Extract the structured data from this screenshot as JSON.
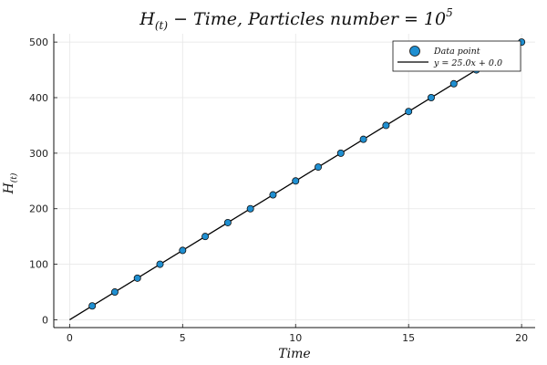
{
  "chart_data": {
    "type": "scatter",
    "title": "H(t) − Time, Particles number = 10^5",
    "title_parts": {
      "H": "H",
      "sub": "(t)",
      "rest": " − Time, Particles number = 10",
      "sup": "5"
    },
    "xlabel": "Time",
    "ylabel": "H(t)",
    "ylabel_parts": {
      "H": "H",
      "sub": "(t)"
    },
    "xlim": [
      -0.7,
      20.6
    ],
    "ylim": [
      -14,
      515
    ],
    "xticks": [
      0,
      5,
      10,
      15,
      20
    ],
    "yticks": [
      0,
      100,
      200,
      300,
      400,
      500
    ],
    "grid": true,
    "legend_position": "top-right",
    "series": [
      {
        "name": "Data point",
        "kind": "scatter",
        "color": "#1f8fd1",
        "x": [
          1,
          2,
          3,
          4,
          5,
          6,
          7,
          8,
          9,
          10,
          11,
          12,
          13,
          14,
          15,
          16,
          17,
          18,
          19,
          20
        ],
        "y": [
          25,
          50,
          75,
          100,
          125,
          150,
          175,
          200,
          225,
          250,
          275,
          300,
          325,
          350,
          375,
          400,
          425,
          450,
          475,
          500
        ]
      },
      {
        "name": "y = 25.0x + 0.0",
        "kind": "line",
        "color": "#000000",
        "x": [
          0,
          20
        ],
        "y": [
          0,
          500
        ]
      }
    ]
  }
}
